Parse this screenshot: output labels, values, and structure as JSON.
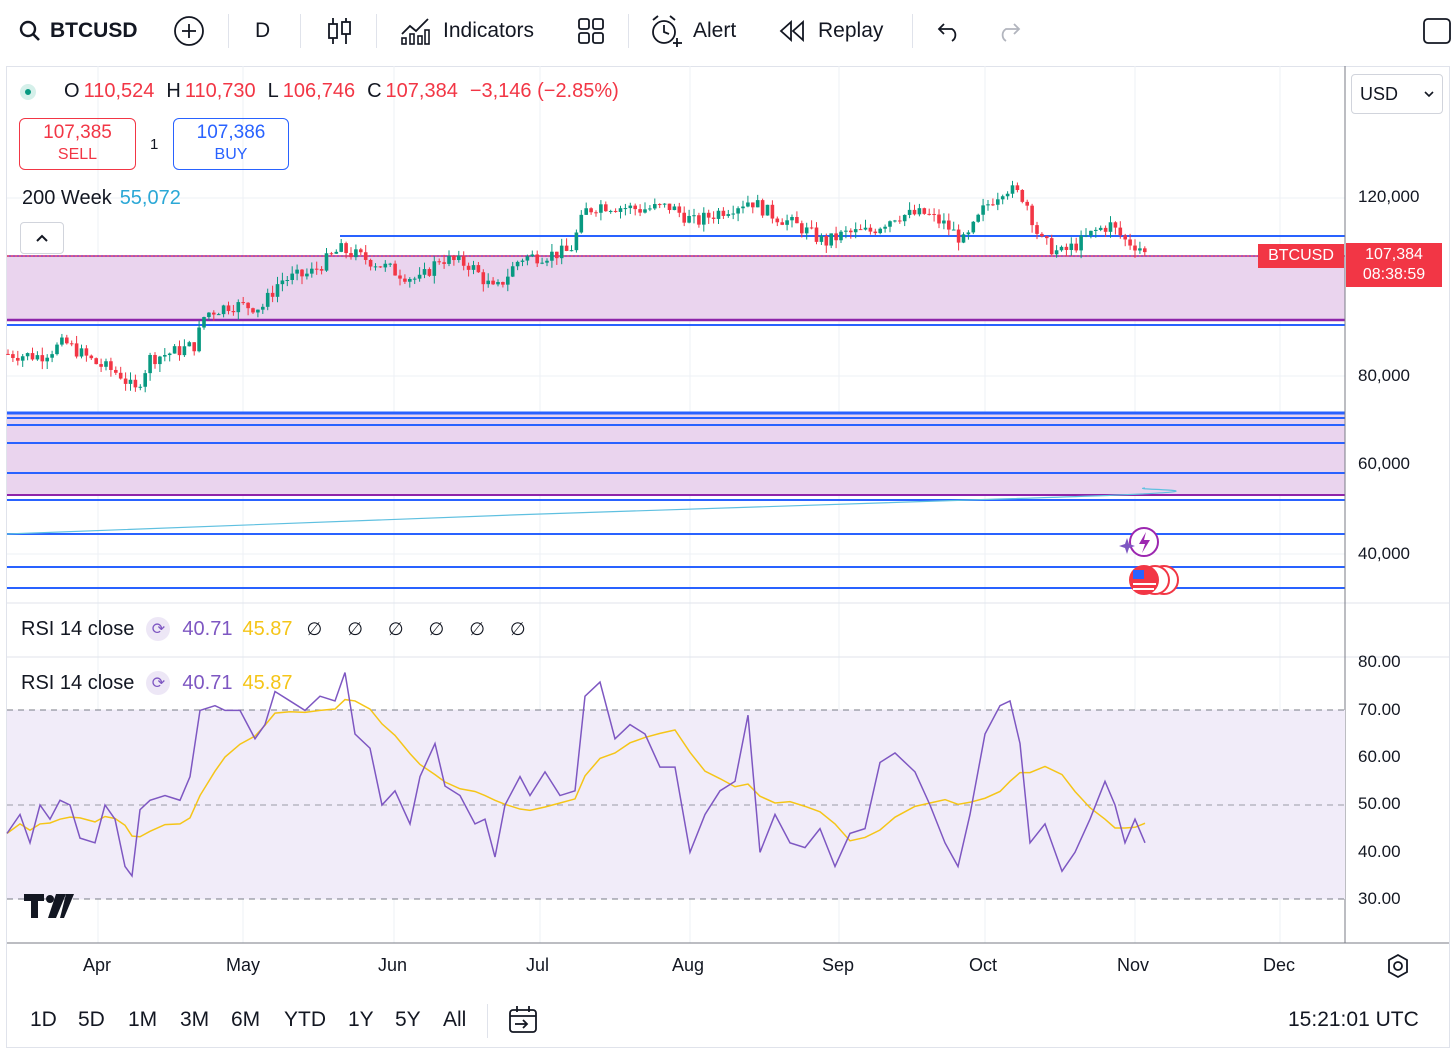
{
  "toolbar": {
    "symbol": "BTCUSD",
    "interval": "D",
    "indicators_label": "Indicators",
    "alert_label": "Alert",
    "replay_label": "Replay"
  },
  "legend": {
    "o_label": "O",
    "o": "110,524",
    "h_label": "H",
    "h": "110,730",
    "l_label": "L",
    "l": "106,746",
    "c_label": "C",
    "c": "107,384",
    "change": "−3,146 (−2.85%)"
  },
  "trade": {
    "sell_price": "107,385",
    "sell_label": "SELL",
    "qty": "1",
    "buy_price": "107,386",
    "buy_label": "BUY"
  },
  "ma": {
    "label": "200 Week",
    "value": "55,072"
  },
  "currency": "USD",
  "price_axis": {
    "ticks": [
      "120,000",
      "80,000",
      "60,000",
      "40,000"
    ],
    "last_price": "107,384",
    "countdown": "08:38:59",
    "symbol_tag": "BTCUSD"
  },
  "rsi_panes": [
    {
      "label": "RSI 14 close",
      "value": "40.71",
      "ma_value": "45.87",
      "nulls": "∅ ∅ ∅ ∅ ∅ ∅"
    },
    {
      "label": "RSI 14 close",
      "value": "40.71",
      "ma_value": "45.87"
    }
  ],
  "rsi_axis": [
    "80.00",
    "70.00",
    "60.00",
    "50.00",
    "40.00",
    "30.00"
  ],
  "time_axis": [
    "Apr",
    "May",
    "Jun",
    "Jul",
    "Aug",
    "Sep",
    "Oct",
    "Nov",
    "Dec"
  ],
  "ranges": [
    "1D",
    "5D",
    "1M",
    "3M",
    "6M",
    "YTD",
    "1Y",
    "5Y",
    "All"
  ],
  "clock": "15:21:01 UTC",
  "colors": {
    "up": "#089981",
    "down": "#f23645",
    "hline": "#2962ff",
    "zone": "#e1bee7",
    "rsi": "#7e57c2",
    "rsi_ma": "#f5c518",
    "ma200": "#5fc0e0"
  }
}
